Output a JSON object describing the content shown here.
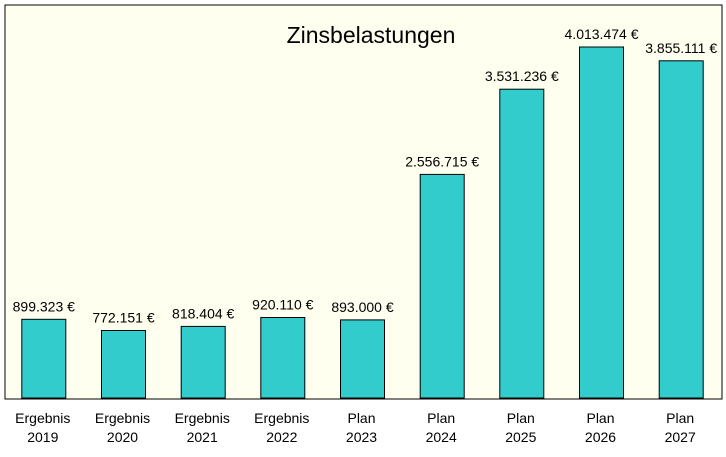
{
  "chart_data": {
    "type": "bar",
    "title": "Zinsbelastungen",
    "categories": [
      [
        "Ergebnis",
        "2019"
      ],
      [
        "Ergebnis",
        "2020"
      ],
      [
        "Ergebnis",
        "2021"
      ],
      [
        "Ergebnis",
        "2022"
      ],
      [
        "Plan",
        "2023"
      ],
      [
        "Plan",
        "2024"
      ],
      [
        "Plan",
        "2025"
      ],
      [
        "Plan",
        "2026"
      ],
      [
        "Plan",
        "2027"
      ]
    ],
    "values": [
      899323,
      772151,
      818404,
      920110,
      893000,
      2556715,
      3531236,
      4013474,
      3855111
    ],
    "value_labels": [
      "899.323 €",
      "772.151 €",
      "818.404 €",
      "920.110 €",
      "893.000 €",
      "2.556.715 €",
      "3.531.236 €",
      "4.013.474 €",
      "3.855.111 €"
    ],
    "ylim": [
      0,
      4400000
    ],
    "grid": false,
    "legend": "none",
    "colors": {
      "bar": "#33CCCC",
      "plot_background": "#FFFFF0",
      "border": "#000000"
    }
  }
}
